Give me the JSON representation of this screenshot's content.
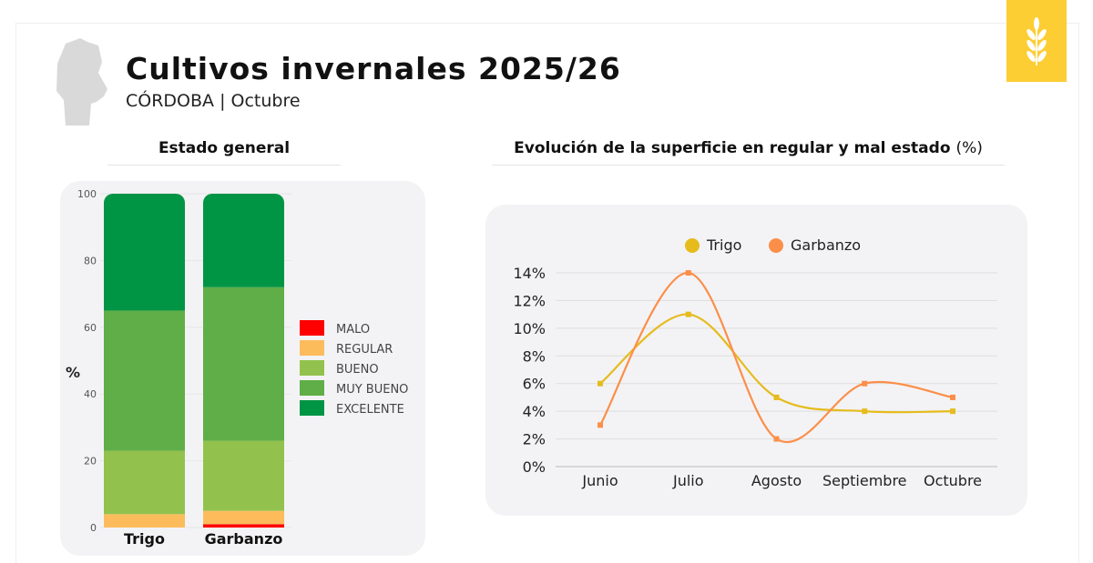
{
  "header": {
    "title": "Cultivos invernales 2025/26",
    "subtitle": "CÓRDOBA | Octubre",
    "logo": "wheat-icon",
    "map": "cordoba-map-icon"
  },
  "chart_data": [
    {
      "type": "bar",
      "stacked": true,
      "title": "Estado general",
      "ylabel": "%",
      "ylim": [
        0,
        100
      ],
      "yticks": [
        0,
        20,
        40,
        60,
        80,
        100
      ],
      "categories": [
        "Trigo",
        "Garbanzo"
      ],
      "series": [
        {
          "name": "MALO",
          "color": "#ff0000",
          "values": [
            0,
            1
          ]
        },
        {
          "name": "REGULAR",
          "color": "#fdbc5c",
          "values": [
            4,
            4
          ]
        },
        {
          "name": "BUENO",
          "color": "#92c24d",
          "values": [
            19,
            21
          ]
        },
        {
          "name": "MUY BUENO",
          "color": "#5fae47",
          "values": [
            42,
            46
          ]
        },
        {
          "name": "EXCELENTE",
          "color": "#009544",
          "values": [
            35,
            28
          ]
        }
      ],
      "legend": "right"
    },
    {
      "type": "line",
      "title": "Evolución de la superficie en regular y mal estado",
      "title_unit": "(%)",
      "ylim": [
        0,
        14
      ],
      "yticks": [
        "0%",
        "2%",
        "4%",
        "6%",
        "8%",
        "10%",
        "12%",
        "14%"
      ],
      "categories": [
        "Junio",
        "Julio",
        "Agosto",
        "Septiembre",
        "Octubre"
      ],
      "series": [
        {
          "name": "Trigo",
          "color": "#e6bb1c",
          "values": [
            6,
            11,
            5,
            4,
            4
          ]
        },
        {
          "name": "Garbanzo",
          "color": "#fb8f4a",
          "values": [
            3,
            14,
            2,
            6,
            5
          ]
        }
      ],
      "legend": "top",
      "grid": true
    }
  ]
}
